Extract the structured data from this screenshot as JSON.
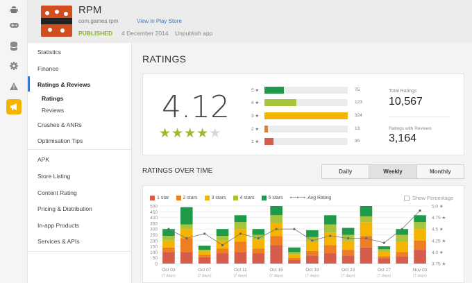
{
  "app": {
    "name": "RPM",
    "package": "com.games.rpm",
    "play_store_link": "View in Play Store",
    "status": "PUBLISHED",
    "published_date": "4 December 2014",
    "unpublish_link": "Unpublish app"
  },
  "rail": {
    "icons": [
      "android-icon",
      "gamepad-icon",
      "database-icon",
      "gear-icon",
      "warning-icon",
      "megaphone-icon"
    ]
  },
  "sidebar": {
    "items": [
      {
        "label": "Statistics"
      },
      {
        "label": "Finance"
      },
      {
        "label": "Ratings & Reviews"
      },
      {
        "label": "Ratings"
      },
      {
        "label": "Reviews"
      },
      {
        "label": "Crashes & ANRs"
      },
      {
        "label": "Optimisation Tips"
      },
      {
        "label": "APK"
      },
      {
        "label": "Store Listing"
      },
      {
        "label": "Content Rating"
      },
      {
        "label": "Pricing & Distribution"
      },
      {
        "label": "In-app Products"
      },
      {
        "label": "Services & APIs"
      }
    ]
  },
  "ratings": {
    "heading": "RATINGS",
    "average": "4.12",
    "average_stars": 4,
    "breakdown": [
      {
        "label": "5 ★",
        "count": "75",
        "value": 75,
        "color": "#1f9a4a"
      },
      {
        "label": "4 ★",
        "count": "123",
        "value": 123,
        "color": "#a8c43a"
      },
      {
        "label": "3 ★",
        "count": "324",
        "value": 324,
        "color": "#f4b400"
      },
      {
        "label": "2 ★",
        "count": "13",
        "value": 13,
        "color": "#ef7d22"
      },
      {
        "label": "1 ★",
        "count": "35",
        "value": 35,
        "color": "#d65c4c"
      }
    ],
    "total_label": "Total Ratings",
    "total_value": "10,567",
    "with_reviews_label": "Ratings with Reviews",
    "with_reviews_value": "3,164"
  },
  "ratings_over_time": {
    "heading": "RATINGS OVER TIME",
    "tabs": [
      {
        "label": "Daily",
        "selected": false
      },
      {
        "label": "Weekly",
        "selected": true
      },
      {
        "label": "Monthly",
        "selected": false
      }
    ],
    "show_percentage": "Show Percentage",
    "legend": [
      {
        "label": "1 star",
        "color": "#d65c4c"
      },
      {
        "label": "2 stars",
        "color": "#ef7d22"
      },
      {
        "label": "3 stars",
        "color": "#f4b400"
      },
      {
        "label": "4 stars",
        "color": "#a8c43a"
      },
      {
        "label": "5 stars",
        "color": "#1f9a4a"
      },
      {
        "label": "Avg Rating",
        "color": "#555555"
      }
    ]
  },
  "chart_data": {
    "type": "bar",
    "stacked": true,
    "ylim": [
      0,
      500
    ],
    "y_ticks": [
      0,
      50,
      100,
      150,
      200,
      250,
      300,
      350,
      400,
      450,
      500
    ],
    "y2_ticks": [
      3.75,
      4.0,
      4.25,
      4.5,
      4.75,
      5.0
    ],
    "y2lim": [
      3.75,
      5.0
    ],
    "x_tick_labels": [
      "Oct 03",
      "Oct 07",
      "Oct 11",
      "Oct 15",
      "Oct 19",
      "Oct 23",
      "Oct 27",
      "Nov 03"
    ],
    "x_tick_sublabels": [
      "(7 days)",
      "(7 days)",
      "(7 days)",
      "(7 days)",
      "(7 days)",
      "(7 days)",
      "(7 days)",
      "(7 days)"
    ],
    "bars": [
      [
        100,
        40,
        60,
        40,
        60
      ],
      [
        100,
        120,
        80,
        40,
        150
      ],
      [
        55,
        20,
        30,
        15,
        35
      ],
      [
        90,
        40,
        70,
        40,
        60
      ],
      [
        100,
        90,
        110,
        60,
        60
      ],
      [
        90,
        40,
        80,
        40,
        50
      ],
      [
        160,
        80,
        110,
        70,
        80
      ],
      [
        30,
        20,
        30,
        20,
        40
      ],
      [
        70,
        40,
        80,
        40,
        60
      ],
      [
        90,
        70,
        110,
        70,
        80
      ],
      [
        70,
        50,
        80,
        50,
        60
      ],
      [
        140,
        100,
        120,
        50,
        90
      ],
      [
        45,
        20,
        40,
        20,
        25
      ],
      [
        60,
        40,
        90,
        60,
        50
      ],
      [
        120,
        80,
        100,
        60,
        60
      ]
    ],
    "avg_rating": [
      4.5,
      4.3,
      4.4,
      4.15,
      4.4,
      4.3,
      4.5,
      4.5,
      4.25,
      4.35,
      4.3,
      4.3,
      4.2,
      4.5,
      4.9
    ]
  }
}
